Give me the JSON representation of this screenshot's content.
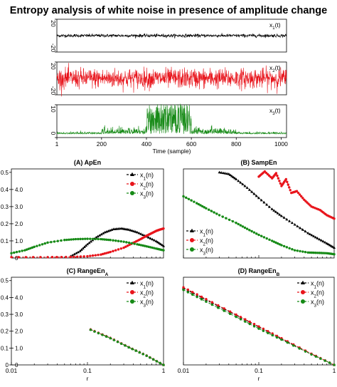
{
  "figure": {
    "title": "Entropy analysis of white noise in presence of amplitude change"
  },
  "colors": {
    "x1": "#000000",
    "x2": "#e8141b",
    "x3": "#168a16"
  },
  "chart_data": [
    {
      "type": "line",
      "panel": "signal-x1",
      "legend": "x1(t)",
      "ylim": [
        -20,
        20
      ],
      "yticks": [
        "20",
        "-20"
      ],
      "xlim": [
        1,
        1024
      ],
      "samples": 1024,
      "amplitude_std": [
        {
          "from": 1,
          "to": 1024,
          "std": 1.0
        }
      ],
      "color": "x1"
    },
    {
      "type": "line",
      "panel": "signal-x2",
      "legend": "x2(t)",
      "ylim": [
        -20,
        20
      ],
      "yticks": [
        "20",
        "-20"
      ],
      "xlim": [
        1,
        1024
      ],
      "samples": 1024,
      "amplitude_std": [
        {
          "from": 1,
          "to": 1024,
          "std": 6.0
        }
      ],
      "color": "x2"
    },
    {
      "type": "line",
      "panel": "signal-x3",
      "legend": "x3(t)",
      "ylim": [
        0,
        10
      ],
      "yticks": [
        "10",
        "0"
      ],
      "xlim": [
        1,
        1024
      ],
      "xticks": [
        "1",
        "200",
        "400",
        "600",
        "800",
        "1000"
      ],
      "xtick_values": [
        1,
        200,
        400,
        600,
        800,
        1000
      ],
      "xlabel": "Time (sample)",
      "samples": 1024,
      "amplitude_std": [
        {
          "from": 1,
          "to": 200,
          "std": 0.3
        },
        {
          "from": 200,
          "to": 400,
          "std": 1.0
        },
        {
          "from": 400,
          "to": 600,
          "std": 3.2
        },
        {
          "from": 600,
          "to": 800,
          "std": 1.0
        },
        {
          "from": 800,
          "to": 1024,
          "std": 0.3
        }
      ],
      "color": "x3"
    },
    {
      "type": "line",
      "panel": "ApEn",
      "title": "(A) ApEn",
      "xscale": "log",
      "xlim": [
        0.01,
        1
      ],
      "ylim": [
        0,
        5.2
      ],
      "left_yticks": [
        "0.5",
        "0.4",
        "0.3",
        "0.2",
        "0.1"
      ],
      "left_ytick_values": [
        0.5,
        0.4,
        0.3,
        0.2,
        0.1
      ],
      "left_ylim": [
        0,
        0.52
      ],
      "inner_yticks": [
        "4.0",
        "3.0",
        "2.0",
        "1.0",
        "0"
      ],
      "inner_ytick_values": [
        4.0,
        3.0,
        2.0,
        1.0,
        0
      ],
      "legend_position": "top-right",
      "series": [
        {
          "name": "x1(n)",
          "color": "x1",
          "marker": "triangle",
          "x": [
            0.06,
            0.08,
            0.1,
            0.13,
            0.17,
            0.22,
            0.28,
            0.35,
            0.45,
            0.6,
            0.8,
            1.0
          ],
          "y": [
            0.1,
            0.4,
            0.8,
            1.2,
            1.5,
            1.68,
            1.72,
            1.65,
            1.5,
            1.25,
            0.98,
            0.7
          ]
        },
        {
          "name": "x2(n)",
          "color": "x2",
          "marker": "circle",
          "x": [
            0.01,
            0.03,
            0.06,
            0.1,
            0.15,
            0.2,
            0.3,
            0.4,
            0.5,
            0.6,
            0.7,
            0.8,
            0.9,
            1.0
          ],
          "y": [
            0.05,
            0.05,
            0.06,
            0.1,
            0.2,
            0.35,
            0.6,
            0.88,
            1.1,
            1.3,
            1.45,
            1.58,
            1.66,
            1.72
          ]
        },
        {
          "name": "x3(n)",
          "color": "x3",
          "marker": "circle",
          "x": [
            0.01,
            0.015,
            0.02,
            0.03,
            0.05,
            0.07,
            0.1,
            0.15,
            0.2,
            0.3,
            0.45,
            0.6,
            0.8,
            1.0
          ],
          "y": [
            0.28,
            0.45,
            0.65,
            0.9,
            1.05,
            1.1,
            1.12,
            1.1,
            1.05,
            0.95,
            0.8,
            0.68,
            0.55,
            0.45
          ]
        }
      ]
    },
    {
      "type": "line",
      "panel": "SampEn",
      "title": "(B) SampEn",
      "xscale": "log",
      "xlim": [
        0.01,
        1
      ],
      "ylim": [
        0,
        5.2
      ],
      "legend_position": "bottom-left",
      "series": [
        {
          "name": "x1(n)",
          "color": "x1",
          "marker": "triangle",
          "x": [
            0.03,
            0.04,
            0.05,
            0.07,
            0.1,
            0.15,
            0.2,
            0.3,
            0.45,
            0.6,
            0.8,
            1.0
          ],
          "y": [
            5.0,
            4.9,
            4.6,
            4.1,
            3.5,
            2.85,
            2.45,
            1.95,
            1.45,
            1.15,
            0.85,
            0.6
          ]
        },
        {
          "name": "x2(n)",
          "color": "x2",
          "marker": "circle",
          "x": [
            0.1,
            0.12,
            0.15,
            0.17,
            0.2,
            0.23,
            0.27,
            0.32,
            0.4,
            0.5,
            0.65,
            0.8,
            1.0
          ],
          "y": [
            4.75,
            5.05,
            4.65,
            4.95,
            4.2,
            4.6,
            3.8,
            3.9,
            3.4,
            3.0,
            2.8,
            2.5,
            2.3
          ]
        },
        {
          "name": "x3(n)",
          "color": "x3",
          "marker": "circle",
          "x": [
            0.01,
            0.015,
            0.02,
            0.03,
            0.05,
            0.07,
            0.1,
            0.15,
            0.2,
            0.3,
            0.45,
            0.6,
            0.8,
            1.0
          ],
          "y": [
            3.6,
            3.2,
            2.9,
            2.5,
            2.05,
            1.7,
            1.35,
            1.0,
            0.75,
            0.45,
            0.32,
            0.3,
            0.28,
            0.22
          ]
        }
      ]
    },
    {
      "type": "line",
      "panel": "RangeEnA",
      "title": "(C) RangeEn",
      "title_subscript": "A",
      "xscale": "log",
      "xlim": [
        0.01,
        1
      ],
      "xticks": [
        "0.01",
        "0.1",
        "1"
      ],
      "xtick_values": [
        0.01,
        0.1,
        1
      ],
      "xlabel": "r",
      "ylim": [
        0,
        5.2
      ],
      "inner_yticks": [
        "4.0",
        "3.0",
        "2.0",
        "1.0",
        "0"
      ],
      "inner_ytick_values": [
        4.0,
        3.0,
        2.0,
        1.0,
        0
      ],
      "left_yticks": [
        "0.5",
        "0.4",
        "0.3",
        "0.2",
        "0.1",
        "0"
      ],
      "left_ytick_values": [
        0.5,
        0.4,
        0.3,
        0.2,
        0.1,
        0
      ],
      "left_ylim": [
        0,
        0.52
      ],
      "legend_position": "top-right",
      "series": [
        {
          "name": "x1(n)",
          "color": "x1",
          "marker": "triangle",
          "x": [
            0.11,
            0.2,
            0.35,
            0.6,
            1.0
          ],
          "y": [
            2.1,
            1.6,
            1.05,
            0.55,
            0.0
          ]
        },
        {
          "name": "x2(n)",
          "color": "x2",
          "marker": "circle",
          "x": [
            0.11,
            0.2,
            0.35,
            0.6,
            1.0
          ],
          "y": [
            2.1,
            1.6,
            1.05,
            0.55,
            0.0
          ]
        },
        {
          "name": "x3(n)",
          "color": "x3",
          "marker": "circle",
          "x": [
            0.11,
            0.2,
            0.35,
            0.6,
            1.0
          ],
          "y": [
            2.08,
            1.58,
            1.04,
            0.54,
            0.0
          ]
        }
      ]
    },
    {
      "type": "line",
      "panel": "RangeEnB",
      "title": "(D) RangeEn",
      "title_subscript": "B",
      "xscale": "log",
      "xlim": [
        0.01,
        1
      ],
      "xticks": [
        "0.01",
        "0.1",
        "1"
      ],
      "xtick_values": [
        0.01,
        0.1,
        1
      ],
      "xlabel": "r",
      "ylim": [
        0,
        5.2
      ],
      "legend_position": "top-right",
      "series": [
        {
          "name": "x1(n)",
          "color": "x1",
          "marker": "triangle",
          "x": [
            0.01,
            0.02,
            0.05,
            0.1,
            0.2,
            0.5,
            1.0
          ],
          "y": [
            4.55,
            3.85,
            2.95,
            2.25,
            1.55,
            0.65,
            0.0
          ]
        },
        {
          "name": "x2(n)",
          "color": "x2",
          "marker": "circle",
          "x": [
            0.01,
            0.02,
            0.05,
            0.1,
            0.2,
            0.5,
            1.0
          ],
          "y": [
            4.6,
            3.9,
            2.98,
            2.28,
            1.58,
            0.66,
            0.0
          ]
        },
        {
          "name": "x3(n)",
          "color": "x3",
          "marker": "circle",
          "x": [
            0.01,
            0.02,
            0.05,
            0.1,
            0.2,
            0.5,
            1.0
          ],
          "y": [
            4.45,
            3.75,
            2.85,
            2.15,
            1.5,
            0.62,
            0.0
          ]
        }
      ]
    }
  ]
}
